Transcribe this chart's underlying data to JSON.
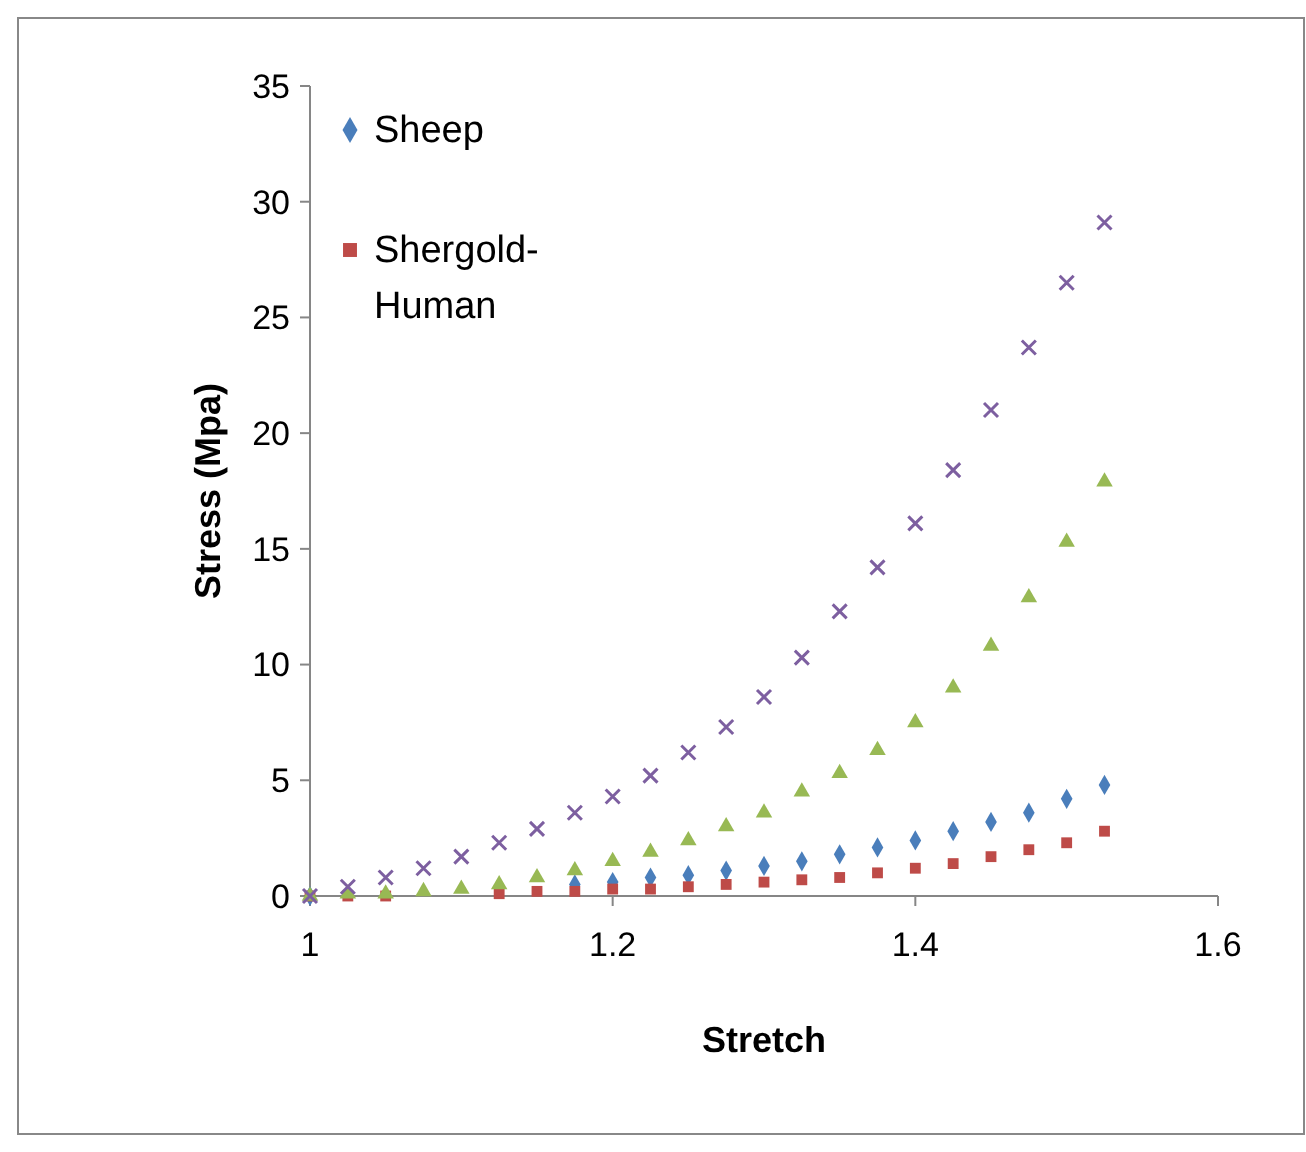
{
  "chart_data": {
    "type": "scatter",
    "xlabel": "Stretch",
    "ylabel": "Stress (Mpa)",
    "x": [
      1,
      1.025,
      1.05,
      1.075,
      1.1,
      1.125,
      1.15,
      1.175,
      1.2,
      1.225,
      1.25,
      1.275,
      1.3,
      1.325,
      1.35,
      1.375,
      1.4,
      1.425,
      1.45,
      1.475,
      1.5,
      1.525
    ],
    "series": [
      {
        "name": "Sheep",
        "color": "#4a7ebb",
        "marker": "diamond",
        "values": [
          0,
          null,
          null,
          null,
          null,
          null,
          null,
          0.5,
          0.6,
          0.8,
          0.9,
          1.1,
          1.3,
          1.5,
          1.8,
          2.1,
          2.4,
          2.8,
          3.2,
          3.6,
          4.2,
          4.8
        ]
      },
      {
        "name": "Shergold-Human",
        "color": "#be4b48",
        "marker": "square",
        "values": [
          0,
          0,
          0,
          null,
          null,
          0.1,
          0.2,
          0.2,
          0.3,
          0.3,
          0.4,
          0.5,
          0.6,
          0.7,
          0.8,
          1.0,
          1.2,
          1.4,
          1.7,
          2.0,
          2.3,
          2.8
        ]
      },
      {
        "color": "#98b954",
        "marker": "triangle",
        "values": [
          0,
          0.1,
          0.1,
          0.2,
          0.3,
          0.5,
          0.8,
          1.1,
          1.5,
          1.9,
          2.4,
          3.0,
          3.6,
          4.5,
          5.3,
          6.3,
          7.5,
          9.0,
          10.8,
          12.9,
          15.3,
          17.9
        ]
      },
      {
        "color": "#7d5fa0",
        "marker": "cross",
        "values": [
          0,
          0.4,
          0.8,
          1.2,
          1.7,
          2.3,
          2.9,
          3.6,
          4.3,
          5.2,
          6.2,
          7.3,
          8.6,
          10.3,
          12.3,
          14.2,
          16.1,
          18.4,
          21.0,
          23.7,
          26.5,
          29.1
        ]
      }
    ],
    "xlim": [
      1,
      1.6
    ],
    "xticks": [
      1,
      1.2,
      1.4,
      1.6
    ],
    "ylim": [
      0,
      35
    ],
    "yticks": [
      0,
      5,
      10,
      15,
      20,
      25,
      30,
      35
    ],
    "grid": false,
    "legend": "top left"
  }
}
